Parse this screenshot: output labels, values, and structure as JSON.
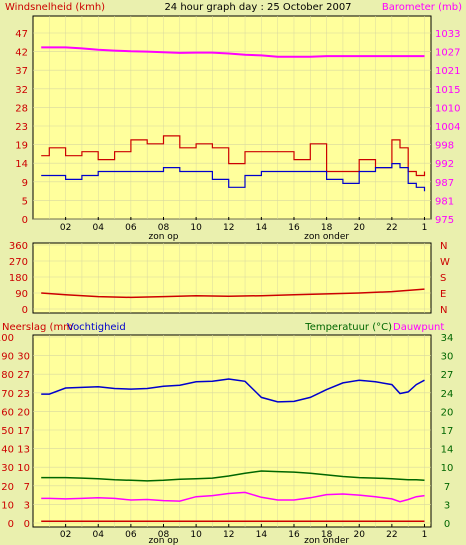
{
  "colors": {
    "background": "#eaf0ae",
    "plot_bg": "#ffff9c",
    "wind": "#cc0000",
    "gust_series": "#0000cc",
    "barometer": "#ff00ff",
    "direction": "#cc0000",
    "rain": "#cc0000",
    "humidity": "#0000cc",
    "temperature": "#006600",
    "dewpoint": "#ff00ff"
  },
  "header": {
    "left_label": "Windsnelheid (kmh)",
    "title": "24 hour graph day : 25 October 2007",
    "right_label": "Barometer (mb)"
  },
  "x_ticks": [
    "02",
    "04",
    "06",
    "08",
    "10",
    "12",
    "14",
    "16",
    "18",
    "20",
    "22",
    "1"
  ],
  "sun": {
    "rise_label": "zon op",
    "set_label": "zon onder"
  },
  "chart_data": [
    {
      "type": "line",
      "title": "24 hour graph day : 25 October 2007",
      "ylabel": "Windsnelheid (kmh)",
      "y2label": "Barometer (mb)",
      "y_ticks": [
        "0",
        "5",
        "9",
        "14",
        "19",
        "23",
        "28",
        "32",
        "37",
        "42",
        "47"
      ],
      "y2_ticks": [
        "975",
        "981",
        "987",
        "992",
        "998",
        "1004",
        "1010",
        "1015",
        "1021",
        "1027",
        "1033"
      ],
      "ylim": [
        0,
        47
      ],
      "y2lim": [
        975,
        1033
      ],
      "x": [
        0.5,
        1,
        2,
        3,
        4,
        5,
        6,
        7,
        8,
        9,
        10,
        11,
        12,
        13,
        14,
        15,
        16,
        17,
        18,
        19,
        20,
        21,
        22,
        22.5,
        23,
        23.5,
        24
      ],
      "series": [
        {
          "axis": "left",
          "role": "wind",
          "values": [
            16,
            18,
            16,
            17,
            15,
            17,
            20,
            19,
            21,
            18,
            19,
            18,
            14,
            17,
            17,
            17,
            15,
            19,
            12,
            12,
            15,
            13,
            20,
            18,
            12,
            11,
            12
          ]
        },
        {
          "axis": "left",
          "role": "gust",
          "values": [
            11,
            11,
            10,
            11,
            12,
            12,
            12,
            12,
            13,
            12,
            12,
            10,
            8,
            11,
            12,
            12,
            12,
            12,
            10,
            9,
            12,
            13,
            14,
            13,
            9,
            8,
            7
          ]
        },
        {
          "axis": "right",
          "role": "barometer",
          "values": [
            1028.5,
            1028.5,
            1028.5,
            1028.2,
            1027.8,
            1027.5,
            1027.3,
            1027.2,
            1027.0,
            1026.8,
            1026.9,
            1026.9,
            1026.6,
            1026.2,
            1026.0,
            1025.6,
            1025.6,
            1025.6,
            1025.8,
            1025.8,
            1025.8,
            1025.8,
            1025.8,
            1025.8,
            1025.8,
            1025.8,
            1025.8
          ]
        }
      ]
    },
    {
      "type": "line",
      "y_ticks": [
        "0",
        "90",
        "180",
        "270",
        "360"
      ],
      "y2_ticks": [
        "N",
        "E",
        "S",
        "W",
        "N"
      ],
      "ylim": [
        0,
        360
      ],
      "x": [
        0.5,
        2,
        4,
        6,
        8,
        10,
        12,
        14,
        16,
        18,
        20,
        22,
        24
      ],
      "series": [
        {
          "role": "direction",
          "values": [
            90,
            80,
            70,
            65,
            70,
            75,
            72,
            75,
            80,
            85,
            90,
            98,
            112
          ]
        }
      ]
    },
    {
      "type": "line",
      "ylabel": "Neerslag (mm",
      "ylabel2": "Vochtigheid",
      "y2label": "Temperatuur (°C)",
      "y2label2": "Dauwpunt",
      "y_ticks": [
        "0",
        "3",
        "7",
        "10",
        "13",
        "17",
        "20",
        "23",
        "27",
        "30"
      ],
      "y_ticks_humidity": [
        "0",
        "10",
        "20",
        "30",
        "40",
        "50",
        "60",
        "70",
        "80",
        "90",
        "100"
      ],
      "y2_ticks": [
        "0",
        "3",
        "7",
        "10",
        "14",
        "17",
        "20",
        "24",
        "27",
        "30",
        "34"
      ],
      "ylim": [
        0,
        30
      ],
      "y2lim": [
        0,
        34
      ],
      "x": [
        0.5,
        1,
        2,
        3,
        4,
        5,
        6,
        7,
        8,
        9,
        10,
        11,
        12,
        13,
        14,
        15,
        16,
        17,
        18,
        19,
        20,
        21,
        22,
        22.5,
        23,
        23.5,
        24
      ],
      "series": [
        {
          "axis": "left",
          "role": "rain",
          "values": [
            0.3,
            0.3,
            0.3,
            0.3,
            0.3,
            0.3,
            0.3,
            0.3,
            0.3,
            0.3,
            0.3,
            0.3,
            0.3,
            0.3,
            0.3,
            0.3,
            0.3,
            0.3,
            0.3,
            0.3,
            0.3,
            0.3,
            0.3,
            0.3,
            0.3,
            0.3,
            0.3
          ]
        },
        {
          "axis": "left",
          "role": "humidity",
          "values": [
            23.1,
            23.1,
            24.2,
            24.3,
            24.4,
            24.1,
            24.0,
            24.1,
            24.5,
            24.7,
            25.3,
            25.4,
            25.8,
            25.4,
            22.5,
            21.7,
            21.8,
            22.5,
            23.9,
            25.1,
            25.6,
            25.3,
            24.8,
            23.2,
            23.5,
            24.8,
            25.6
          ]
        },
        {
          "axis": "right",
          "role": "temperature",
          "values": [
            8.3,
            8.3,
            8.3,
            8.2,
            8.1,
            7.9,
            7.8,
            7.7,
            7.8,
            8.0,
            8.1,
            8.2,
            8.6,
            9.1,
            9.5,
            9.4,
            9.3,
            9.1,
            8.8,
            8.5,
            8.3,
            8.2,
            8.1,
            8.0,
            7.9,
            7.9,
            7.8
          ]
        },
        {
          "axis": "right",
          "role": "dewpoint",
          "values": [
            4.5,
            4.5,
            4.4,
            4.5,
            4.6,
            4.5,
            4.2,
            4.3,
            4.1,
            4.0,
            4.8,
            5.0,
            5.4,
            5.6,
            4.7,
            4.2,
            4.2,
            4.6,
            5.2,
            5.3,
            5.1,
            4.8,
            4.4,
            3.9,
            4.3,
            4.8,
            5.0
          ]
        }
      ]
    }
  ]
}
